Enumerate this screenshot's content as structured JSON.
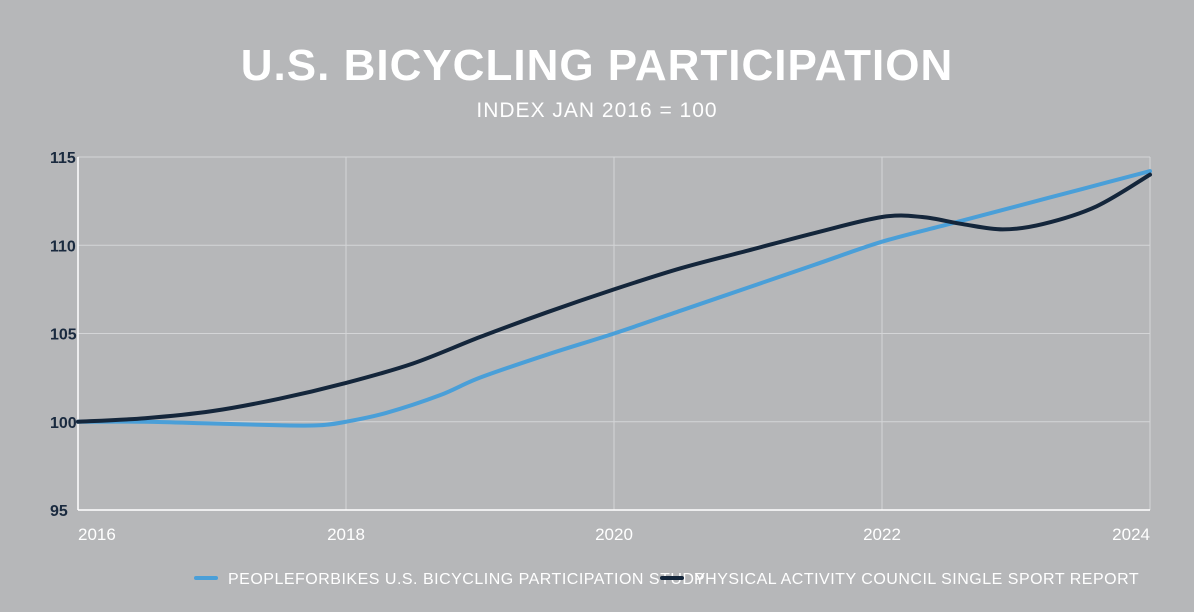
{
  "chart_data": {
    "type": "line",
    "title": "U.S. BICYCLING PARTICIPATION",
    "subtitle": "INDEX JAN 2016 = 100",
    "xlabel": "",
    "ylabel": "",
    "xlim": [
      2016,
      2024
    ],
    "ylim": [
      95,
      115
    ],
    "x_ticks": [
      "2016",
      "2018",
      "2020",
      "2022",
      "2024"
    ],
    "y_ticks": [
      "95",
      "100",
      "105",
      "110",
      "115"
    ],
    "grid": true,
    "legend_position": "bottom",
    "series": [
      {
        "name": "PEOPLEFORBIKES U.S. BICYCLING PARTICIPATION STUDY",
        "color": "#4a9fd8",
        "x": [
          2016,
          2016.5,
          2017,
          2017.5,
          2017.8,
          2018,
          2018.3,
          2018.7,
          2019,
          2019.5,
          2020,
          2020.5,
          2021,
          2021.5,
          2022,
          2022.5,
          2023,
          2023.5,
          2024
        ],
        "y": [
          100,
          100,
          99.9,
          99.8,
          99.8,
          100,
          100.5,
          101.5,
          102.5,
          103.8,
          105,
          106.3,
          107.6,
          108.9,
          110.2,
          111.2,
          112.2,
          113.2,
          114.2
        ]
      },
      {
        "name": "PHYSICAL ACTIVITY COUNCIL SINGLE SPORT REPORT",
        "color": "#14263b",
        "x": [
          2016,
          2016.5,
          2017,
          2017.5,
          2018,
          2018.5,
          2019,
          2019.5,
          2020,
          2020.5,
          2021,
          2021.5,
          2022,
          2022.3,
          2022.6,
          2022.9,
          2023.2,
          2023.6,
          2024
        ],
        "y": [
          100,
          100.2,
          100.6,
          101.3,
          102.2,
          103.3,
          104.8,
          106.2,
          107.5,
          108.7,
          109.7,
          110.7,
          111.6,
          111.6,
          111.2,
          110.9,
          111.2,
          112.2,
          114
        ]
      }
    ]
  }
}
